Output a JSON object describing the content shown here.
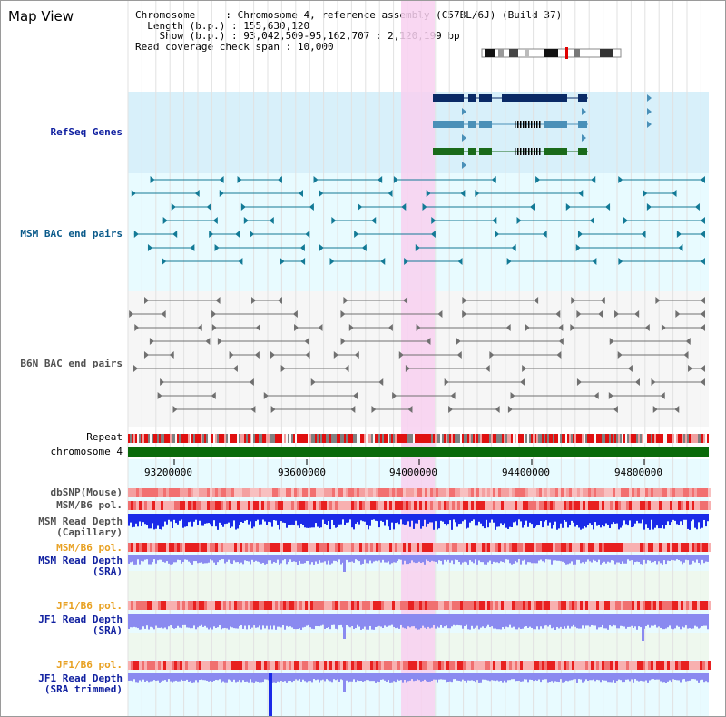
{
  "header": {
    "title": "Map View",
    "chromosome_label": "Chromosome",
    "chromosome_value": "Chromosome 4, reference assembly (C57BL/6J) (Build 37)",
    "length_label": "Length (b.p.)",
    "length_value": "155,630,120",
    "show_label": "Show (b.p.)",
    "show_value": "93,042,509-95,162,707 : 2,120,199 bp",
    "coverage_label": "Read coverage check span",
    "coverage_value": "10,000"
  },
  "tracks": {
    "refseq": "RefSeq Genes",
    "msm_bac": "MSM BAC end pairs",
    "b6n_bac": "B6N BAC end pairs",
    "repeat": "Repeat",
    "chromosome": "chromosome 4",
    "dbsnp": "dbSNP(Mouse)",
    "msm_b6_pol_1": "MSM/B6 pol.",
    "msm_read_depth_cap_1": "MSM Read Depth",
    "msm_read_depth_cap_2": "(Capillary)",
    "msm_b6_pol_2": "MSM/B6 pol.",
    "msm_read_depth_sra_1": "MSM Read Depth",
    "msm_read_depth_sra_2": "(SRA)",
    "jf1_b6_pol_1": "JF1/B6 pol.",
    "jf1_read_depth_sra_1": "JF1 Read Depth",
    "jf1_read_depth_sra_2": "(SRA)",
    "jf1_b6_pol_2": "JF1/B6 pol.",
    "jf1_read_depth_trim_1": "JF1 Read Depth",
    "jf1_read_depth_trim_2": "(SRA trimmed)"
  },
  "axis": {
    "ticks": [
      "93200000",
      "93600000",
      "94000000",
      "94400000",
      "94800000"
    ]
  },
  "colors": {
    "refseq_bg": "#d8f0fa",
    "bac_bg": "#e8fbff",
    "gray_bg": "#f6f6f6",
    "highlight": "#f8d0f0",
    "label_blue": "#1020a0",
    "label_teal": "#0a5a8a",
    "label_gray": "#505050",
    "label_orange": "#e8a020",
    "gene_dark": "#0a2a66",
    "gene_mid": "#4a90b8",
    "gene_green": "#1a6a1a",
    "chromosome_bar": "#0a6a0a",
    "depth_blue": "#1a2ae8",
    "depth_lilac": "#8a8af0"
  }
}
